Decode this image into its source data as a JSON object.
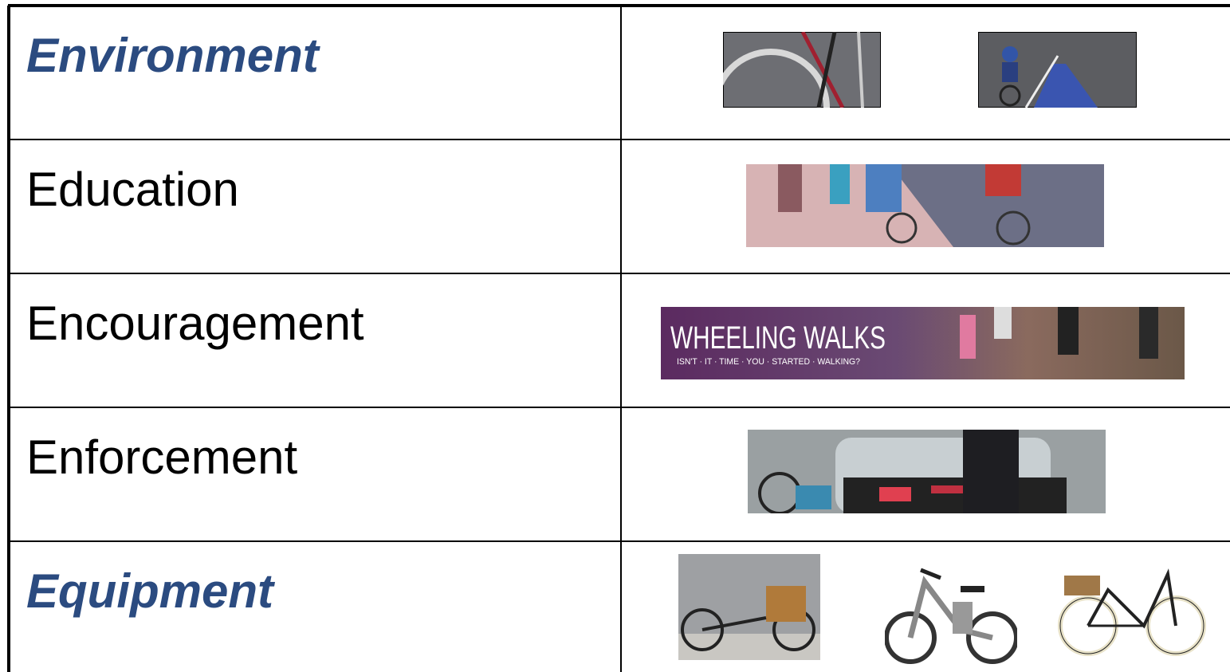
{
  "table": {
    "rows": [
      {
        "label": "Environment",
        "emphasis": true
      },
      {
        "label": "Education",
        "emphasis": false
      },
      {
        "label": "Encouragement",
        "emphasis": false
      },
      {
        "label": "Enforcement",
        "emphasis": false
      },
      {
        "label": "Equipment",
        "emphasis": true
      }
    ]
  },
  "banner": {
    "title": "WHEELING WALKS",
    "tagline": "ISN'T · IT · TIME · YOU · STARTED · WALKING?"
  }
}
